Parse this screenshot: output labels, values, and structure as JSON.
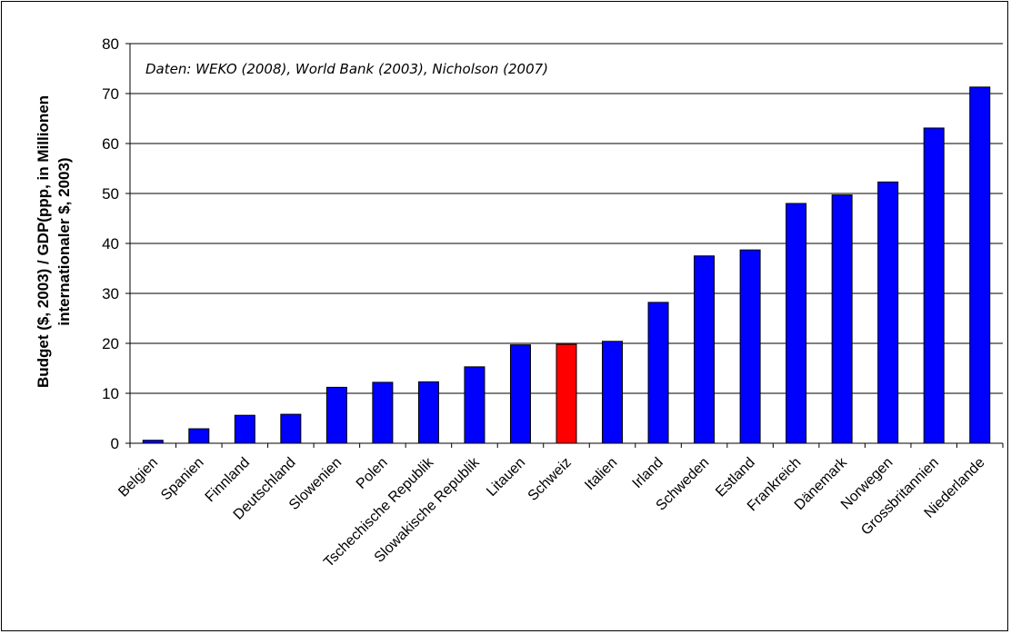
{
  "chart_data": {
    "type": "bar",
    "categories": [
      "Belgien",
      "Spanien",
      "Finnland",
      "Deutschland",
      "Slowenien",
      "Polen",
      "Tschechische Republik",
      "Slowakische Republik",
      "Litauen",
      "Schweiz",
      "Italien",
      "Irland",
      "Schweden",
      "Estland",
      "Frankreich",
      "Dänemark",
      "Norwegen",
      "Grossbritannien",
      "Niederlande"
    ],
    "values": [
      0.6,
      2.9,
      5.6,
      5.8,
      11.2,
      12.2,
      12.3,
      15.3,
      19.7,
      19.8,
      20.4,
      28.2,
      37.5,
      38.7,
      48.0,
      49.7,
      52.3,
      63.1,
      71.3
    ],
    "bar_colors": [
      "#0000ff",
      "#0000ff",
      "#0000ff",
      "#0000ff",
      "#0000ff",
      "#0000ff",
      "#0000ff",
      "#0000ff",
      "#0000ff",
      "#ff0000",
      "#0000ff",
      "#0000ff",
      "#0000ff",
      "#0000ff",
      "#0000ff",
      "#0000ff",
      "#0000ff",
      "#0000ff",
      "#0000ff"
    ],
    "ylim": [
      0,
      80
    ],
    "yticks": [
      0,
      10,
      20,
      30,
      40,
      50,
      60,
      70,
      80
    ],
    "ylabel_line1": "Budget ($, 2003) / GDP(ppp, in Millionen",
    "ylabel_line2": "internationaler $, 2003)",
    "xlabel": "",
    "annotation": "Daten: WEKO (2008), World Bank (2003), Nicholson (2007)",
    "grid": true,
    "legend": "none"
  }
}
